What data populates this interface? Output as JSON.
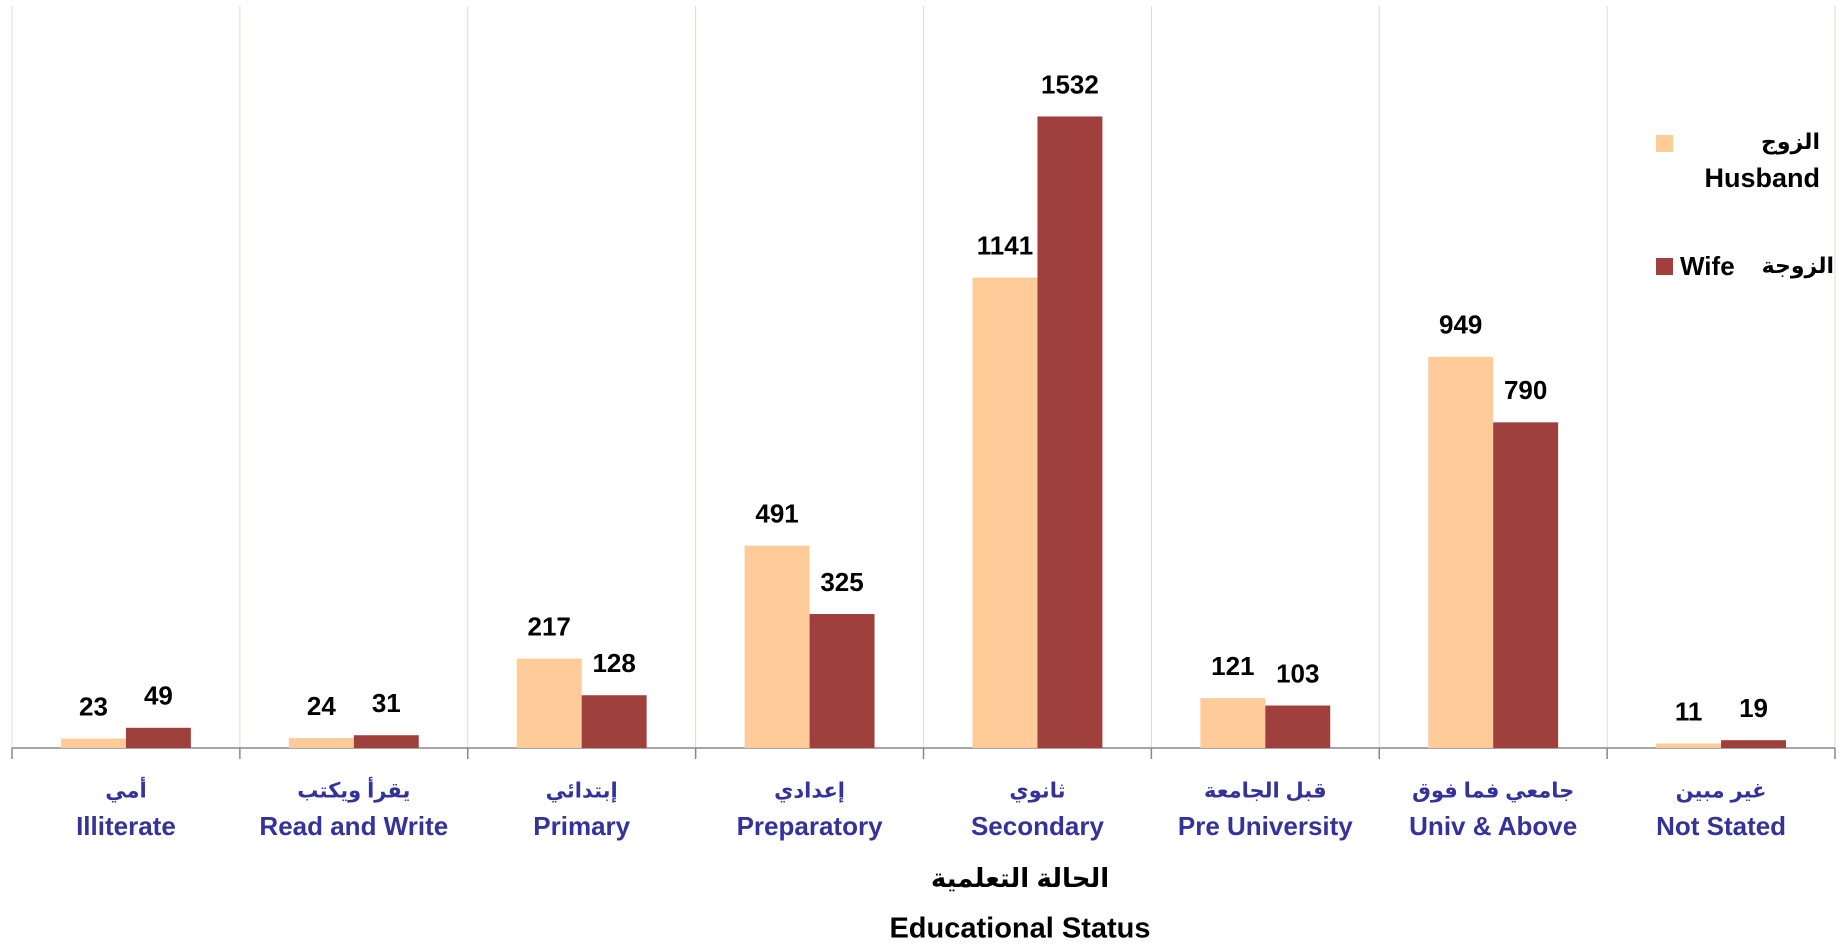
{
  "chart_data": {
    "type": "bar",
    "categories": [
      "Illiterate",
      "Read and Write",
      "Primary",
      "Preparatory",
      "Secondary",
      "Pre University",
      "Univ & Above",
      "Not Stated"
    ],
    "categories_ar": [
      "أمي",
      "يقرأ ويكتب",
      "إبتدائي",
      "إعدادي",
      "ثانوي",
      "قبل الجامعة",
      "جامعي فما فوق",
      "غير مبين"
    ],
    "xlabel_ar": "الحالة التعلمية",
    "xlabel": "Educational Status",
    "series": [
      {
        "name": "Husband",
        "name_ar": "الزوج",
        "color": "#ffcc99",
        "values": [
          23,
          24,
          217,
          491,
          1141,
          121,
          949,
          11
        ]
      },
      {
        "name": "Wife",
        "name_ar": "الزوجة",
        "color": "#a0403d",
        "values": [
          49,
          31,
          128,
          325,
          1532,
          103,
          790,
          19
        ]
      }
    ],
    "ylim": [
      0,
      1800
    ],
    "legend": "right"
  }
}
